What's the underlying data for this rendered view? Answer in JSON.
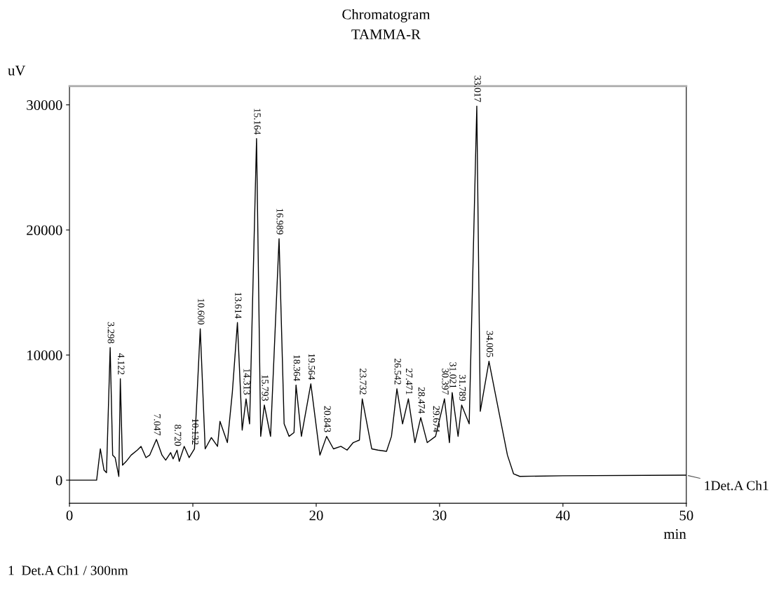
{
  "chart_data": {
    "type": "line",
    "title": "Chromatogram",
    "subtitle": "TAMMA-R",
    "xlabel": "min",
    "ylabel": "uV",
    "x": [
      0,
      2.2,
      2.5,
      2.8,
      3.0,
      3.298,
      3.5,
      3.7,
      4.0,
      4.122,
      4.3,
      4.6,
      5.0,
      5.5,
      5.8,
      6.2,
      6.5,
      7.047,
      7.5,
      7.8,
      8.2,
      8.4,
      8.72,
      8.9,
      9.3,
      9.7,
      10.132,
      10.6,
      11.0,
      11.5,
      12.0,
      12.2,
      12.8,
      13.2,
      13.614,
      14.0,
      14.313,
      14.6,
      15.164,
      15.5,
      15.793,
      16.3,
      16.989,
      17.4,
      17.8,
      18.2,
      18.364,
      18.8,
      19.564,
      20.3,
      20.843,
      21.4,
      22.0,
      22.5,
      23.0,
      23.5,
      23.732,
      24.5,
      25.0,
      25.7,
      26.1,
      26.542,
      27.0,
      27.471,
      28.0,
      28.474,
      29.0,
      29.674,
      30.397,
      30.8,
      31.021,
      31.5,
      31.789,
      32.4,
      33.017,
      33.3,
      34.005,
      34.5,
      35.0,
      35.5,
      36.0,
      36.5,
      40.0,
      50.0
    ],
    "series": [
      {
        "name": "1Det.A Ch1",
        "color": "#000000",
        "values": [
          0,
          0,
          2500,
          800,
          600,
          10600,
          2000,
          1800,
          300,
          8100,
          1200,
          1500,
          2000,
          2400,
          2700,
          1800,
          2000,
          3250,
          2000,
          1600,
          2200,
          1700,
          2400,
          1500,
          2700,
          1800,
          2500,
          12100,
          2500,
          3400,
          2700,
          4700,
          3000,
          7000,
          12600,
          4000,
          6500,
          4500,
          27300,
          3500,
          6000,
          3500,
          19300,
          4500,
          3500,
          3800,
          7600,
          3500,
          7700,
          2000,
          3500,
          2500,
          2700,
          2400,
          3000,
          3200,
          6500,
          2500,
          2400,
          2300,
          3500,
          7300,
          4500,
          6500,
          3000,
          5000,
          3000,
          3500,
          6500,
          3000,
          7000,
          3500,
          6000,
          4500,
          29900,
          5500,
          9500,
          7000,
          4500,
          2000,
          500,
          300,
          350,
          400
        ]
      }
    ],
    "xlim": [
      0,
      50
    ],
    "xticks": [
      0,
      10,
      20,
      30,
      40,
      50
    ],
    "ylim": [
      -1850,
      31500
    ],
    "yticks": [
      0,
      10000,
      20000,
      30000
    ],
    "grid": false,
    "legend": false,
    "annotations": [
      {
        "text": "3.298",
        "x": 3.298,
        "y": 10600
      },
      {
        "text": "4.122",
        "x": 4.122,
        "y": 8100
      },
      {
        "text": "7.047",
        "x": 7.047,
        "y": 3250
      },
      {
        "text": "8.720",
        "x": 8.72,
        "y": 2400
      },
      {
        "text": "10.132",
        "x": 10.132,
        "y": 2500
      },
      {
        "text": "10.600",
        "x": 10.6,
        "y": 12100
      },
      {
        "text": "13.614",
        "x": 13.614,
        "y": 12600
      },
      {
        "text": "14.313",
        "x": 14.313,
        "y": 6500
      },
      {
        "text": "15.164",
        "x": 15.164,
        "y": 27300
      },
      {
        "text": "15.793",
        "x": 15.793,
        "y": 6000
      },
      {
        "text": "16.989",
        "x": 16.989,
        "y": 19300
      },
      {
        "text": "18.364",
        "x": 18.364,
        "y": 7600
      },
      {
        "text": "19.564",
        "x": 19.564,
        "y": 7700
      },
      {
        "text": "20.843",
        "x": 20.843,
        "y": 3500
      },
      {
        "text": "23.732",
        "x": 23.732,
        "y": 6500
      },
      {
        "text": "26.542",
        "x": 26.542,
        "y": 7300
      },
      {
        "text": "27.471",
        "x": 27.471,
        "y": 6500
      },
      {
        "text": "28.474",
        "x": 28.474,
        "y": 5000
      },
      {
        "text": "29.674",
        "x": 29.674,
        "y": 3500
      },
      {
        "text": "30.397",
        "x": 30.397,
        "y": 6500
      },
      {
        "text": "31.021",
        "x": 31.021,
        "y": 7000
      },
      {
        "text": "31.789",
        "x": 31.789,
        "y": 6000
      },
      {
        "text": "33.017",
        "x": 33.017,
        "y": 29900
      },
      {
        "text": "34.005",
        "x": 34.005,
        "y": 9500
      },
      "1  Det.A Ch1 / 300nm"
    ]
  }
}
